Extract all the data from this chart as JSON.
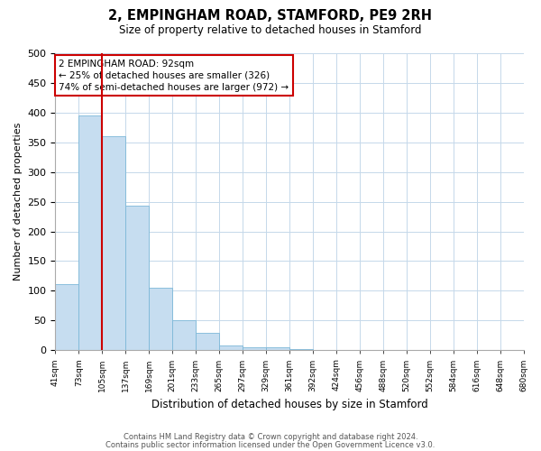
{
  "title": "2, EMPINGHAM ROAD, STAMFORD, PE9 2RH",
  "subtitle": "Size of property relative to detached houses in Stamford",
  "xlabel": "Distribution of detached houses by size in Stamford",
  "ylabel": "Number of detached properties",
  "bar_values": [
    112,
    395,
    360,
    243,
    105,
    50,
    30,
    8,
    5,
    5,
    2,
    1,
    0,
    0,
    0,
    0,
    0,
    0,
    0,
    1
  ],
  "bar_labels": [
    "41sqm",
    "73sqm",
    "105sqm",
    "137sqm",
    "169sqm",
    "201sqm",
    "233sqm",
    "265sqm",
    "297sqm",
    "329sqm",
    "361sqm",
    "392sqm",
    "424sqm",
    "456sqm",
    "488sqm",
    "520sqm",
    "552sqm",
    "584sqm",
    "616sqm",
    "648sqm",
    "680sqm"
  ],
  "bar_color": "#c6ddf0",
  "bar_edge_color": "#7db8d8",
  "vline_x": 2,
  "vline_color": "#cc0000",
  "ylim": [
    0,
    500
  ],
  "yticks": [
    0,
    50,
    100,
    150,
    200,
    250,
    300,
    350,
    400,
    450,
    500
  ],
  "annotation_text": "2 EMPINGHAM ROAD: 92sqm\n← 25% of detached houses are smaller (326)\n74% of semi-detached houses are larger (972) →",
  "annotation_box_color": "#ffffff",
  "annotation_box_edge": "#cc0000",
  "footer_line1": "Contains HM Land Registry data © Crown copyright and database right 2024.",
  "footer_line2": "Contains public sector information licensed under the Open Government Licence v3.0.",
  "background_color": "#ffffff",
  "grid_color": "#c5d8ea"
}
